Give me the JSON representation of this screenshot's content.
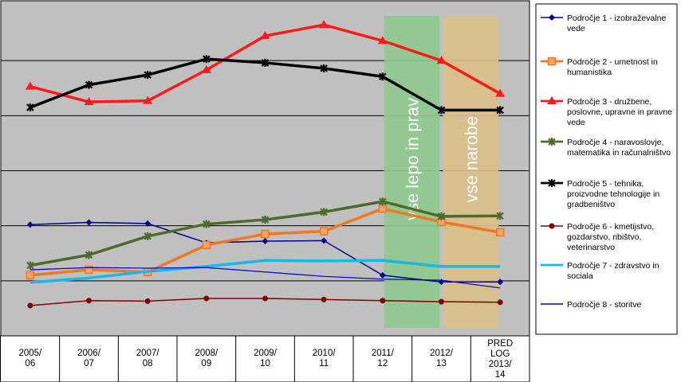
{
  "chart_data": {
    "type": "line",
    "categories": [
      [
        "2005/",
        "06"
      ],
      [
        "2006/",
        "07"
      ],
      [
        "2007/",
        "08"
      ],
      [
        "2008/",
        "09"
      ],
      [
        "2009/",
        "10"
      ],
      [
        "2010/",
        "11"
      ],
      [
        "2011/",
        "12"
      ],
      [
        "2012/",
        "13"
      ],
      [
        "PRED",
        "LOG",
        "2013/",
        "14"
      ]
    ],
    "ylim": [
      0,
      6
    ],
    "grid": true,
    "legend_position": "right",
    "annotations": [
      {
        "text": "vse lepo in prav",
        "color": "#8ec98e",
        "from_index": 6,
        "to_index": 7
      },
      {
        "text": "vse narobe",
        "color": "#d9c08a",
        "from_index": 7,
        "to_index": 8
      }
    ],
    "series": [
      {
        "name": "Področje 1 - izobraževalne vede",
        "color": "#00008b",
        "marker": "diamond",
        "values": [
          2.02,
          2.06,
          2.04,
          1.69,
          1.72,
          1.73,
          1.1,
          0.98,
          0.98
        ]
      },
      {
        "name": "Področje 2 - umetnost in humanistika",
        "color": "#f07820",
        "marker": "square",
        "values": [
          1.1,
          1.2,
          1.16,
          1.65,
          1.85,
          1.9,
          2.31,
          2.07,
          1.88
        ]
      },
      {
        "name": "Področje 3 - družbene, poslovne, upravne in pravne vede",
        "color": "#ff1a1a",
        "marker": "triangle",
        "values": [
          4.53,
          4.25,
          4.27,
          4.83,
          5.45,
          5.65,
          5.36,
          5.0,
          4.4
        ]
      },
      {
        "name": "Področje 4 - naravoslovje, matematika in računalništvo",
        "color": "#4d6b2a",
        "marker": "star",
        "values": [
          1.28,
          1.47,
          1.81,
          2.03,
          2.11,
          2.25,
          2.44,
          2.17,
          2.18
        ]
      },
      {
        "name": "Področje 5 - tehnika, proizvodne tehnologije in gradbeništvo",
        "color": "#000000",
        "marker": "star",
        "values": [
          4.15,
          4.56,
          4.74,
          5.03,
          4.96,
          4.86,
          4.71,
          4.1,
          4.1
        ]
      },
      {
        "name": "Področje 6 - kmetijstvo, gozdarstvo, ribištvo, veterinarstvo",
        "color": "#800000",
        "marker": "circle",
        "values": [
          0.55,
          0.64,
          0.63,
          0.68,
          0.68,
          0.66,
          0.64,
          0.62,
          0.61
        ]
      },
      {
        "name": "Področje 7 - zdravstvo in sociala",
        "color": "#1ab8e8",
        "marker": "none",
        "values": [
          0.97,
          1.05,
          1.17,
          1.26,
          1.37,
          1.36,
          1.37,
          1.26,
          1.26
        ]
      },
      {
        "name": "Področje 8 - storitve",
        "color": "#0000cc",
        "marker": "none",
        "values": [
          1.2,
          1.24,
          1.23,
          1.24,
          1.16,
          1.08,
          1.03,
          1.01,
          0.87
        ]
      }
    ]
  }
}
